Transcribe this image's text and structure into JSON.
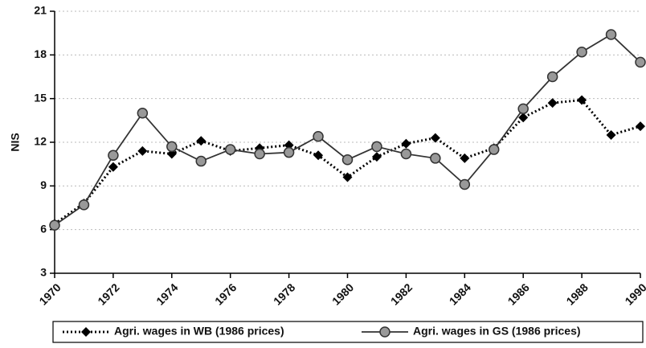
{
  "chart_data": {
    "type": "line",
    "y_label": "NIS",
    "x": [
      1970,
      1971,
      1972,
      1973,
      1974,
      1975,
      1976,
      1977,
      1978,
      1979,
      1980,
      1981,
      1982,
      1983,
      1984,
      1985,
      1986,
      1987,
      1988,
      1989,
      1990
    ],
    "series": [
      {
        "name": "Agri. wages in WB (1986 prices)",
        "color": "#000000",
        "style": "dotted",
        "marker": "diamond",
        "values": [
          6.4,
          7.8,
          10.3,
          11.4,
          11.2,
          12.1,
          11.4,
          11.6,
          11.8,
          11.1,
          9.6,
          11.0,
          11.9,
          12.3,
          10.9,
          11.6,
          13.7,
          14.7,
          14.9,
          12.5,
          13.1
        ]
      },
      {
        "name": "Agri. wages in GS (1986 prices)",
        "color": "#333333",
        "style": "solid",
        "marker": "circle",
        "values": [
          6.3,
          7.7,
          11.1,
          14.0,
          11.7,
          10.7,
          11.5,
          11.2,
          11.3,
          12.4,
          10.8,
          11.7,
          11.2,
          10.9,
          9.1,
          11.5,
          14.3,
          16.5,
          18.2,
          19.4,
          17.5
        ]
      }
    ],
    "xlim": [
      1970,
      1990
    ],
    "xticks": [
      1970,
      1972,
      1974,
      1976,
      1978,
      1980,
      1982,
      1984,
      1986,
      1988,
      1990
    ],
    "ylim": [
      3,
      21
    ],
    "yticks": [
      3,
      6,
      9,
      12,
      15,
      18,
      21
    ],
    "grid": true,
    "legend": "bottom"
  }
}
